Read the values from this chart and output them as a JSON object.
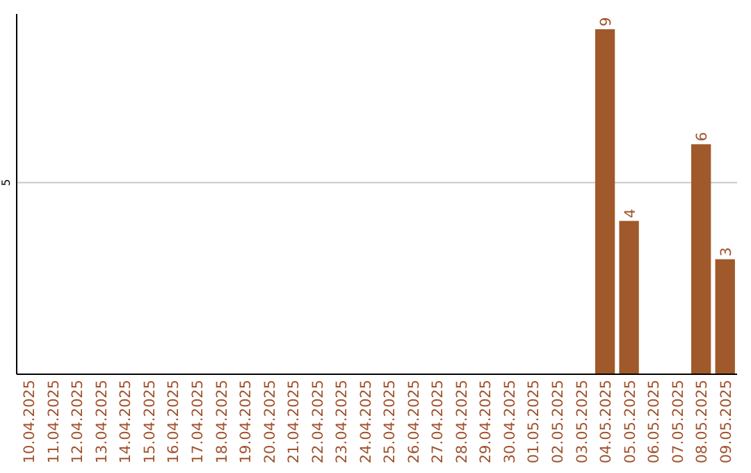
{
  "chart_data": {
    "type": "bar",
    "categories": [
      "10.04.2025",
      "11.04.2025",
      "12.04.2025",
      "13.04.2025",
      "14.04.2025",
      "15.04.2025",
      "16.04.2025",
      "17.04.2025",
      "18.04.2025",
      "19.04.2025",
      "20.04.2025",
      "21.04.2025",
      "22.04.2025",
      "23.04.2025",
      "24.04.2025",
      "25.04.2025",
      "26.04.2025",
      "27.04.2025",
      "28.04.2025",
      "29.04.2025",
      "30.04.2025",
      "01.05.2025",
      "02.05.2025",
      "03.05.2025",
      "04.05.2025",
      "05.05.2025",
      "06.05.2025",
      "07.05.2025",
      "08.05.2025",
      "09.05.2025"
    ],
    "values": [
      null,
      null,
      null,
      null,
      null,
      null,
      null,
      null,
      null,
      null,
      null,
      null,
      null,
      null,
      null,
      null,
      null,
      null,
      null,
      null,
      null,
      null,
      null,
      null,
      9,
      4,
      null,
      null,
      6,
      3
    ],
    "color": "#a0592a",
    "ylim": [
      0,
      9.4
    ],
    "yticks": [
      5
    ],
    "grid": "y",
    "data_labels": true
  }
}
